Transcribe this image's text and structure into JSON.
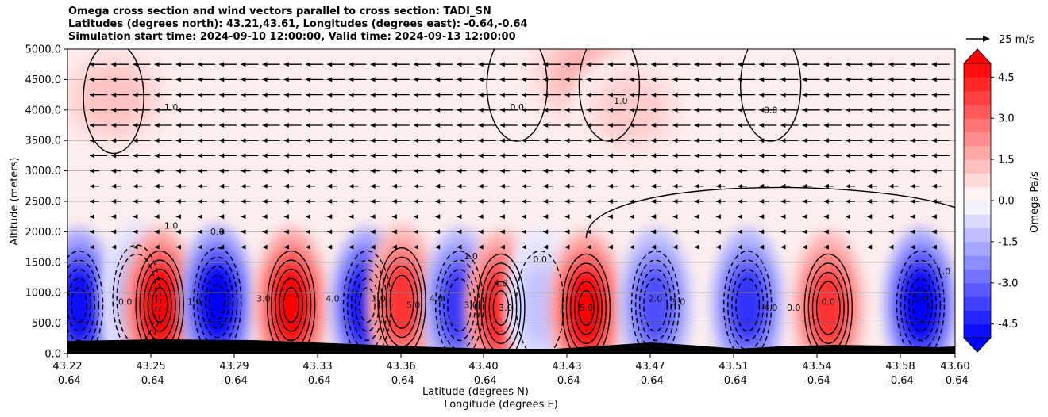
{
  "title": {
    "line1": "Omega cross section and wind vectors parallel to cross section: TADI_SN",
    "line2": "Latitudes (degrees north): 43.21,43.61, Longitudes (degrees east): -0.64,-0.64",
    "line3": "Simulation start time: 2024-09-10 12:00:00, Valid time: 2024-09-13 12:00:00"
  },
  "chart_data": {
    "type": "heatmap",
    "ylabel": "Altitude (meters)",
    "xlabel_lat": "Latitude (degrees N)",
    "xlabel_lon": "Longitude (degrees E)",
    "ylim": [
      0,
      5000
    ],
    "y_ticks": [
      "0.0",
      "500.0",
      "1000.0",
      "1500.0",
      "2000.0",
      "2500.0",
      "3000.0",
      "3500.0",
      "4000.0",
      "4500.0",
      "5000.0"
    ],
    "x_ticks_lat": [
      "43.22",
      "43.25",
      "43.29",
      "43.33",
      "43.36",
      "43.40",
      "43.43",
      "43.47",
      "43.51",
      "43.54",
      "43.58",
      "43.60"
    ],
    "x_ticks_lon": [
      "-0.64",
      "-0.64",
      "-0.64",
      "-0.64",
      "-0.64",
      "-0.64",
      "-0.64",
      "-0.64",
      "-0.64",
      "-0.64",
      "-0.64",
      "-0.64"
    ],
    "grid": "horizontal",
    "colorbar": {
      "label": "Omega Pa/s",
      "ticks": [
        "-4.5",
        "-3.0",
        "-1.5",
        "0.0",
        "1.5",
        "3.0",
        "4.5"
      ],
      "tick_values": [
        -4.5,
        -3.0,
        -1.5,
        0.0,
        1.5,
        3.0,
        4.5
      ],
      "range": [
        -5.0,
        5.0
      ],
      "extend": "both",
      "negative_color": "#0000ff",
      "positive_color": "#ff0000"
    },
    "quiver_key": "25 m/s",
    "contour_labels": [
      "1.0",
      "0.0",
      "1.0",
      "0.0",
      "1.0",
      "0.0",
      "1.0",
      "0.0",
      "0.0",
      "1.0",
      "3.0",
      "4.0",
      "3.0",
      "5.0",
      "4.0",
      "3.0",
      "4.0",
      "3.0",
      "5.0",
      "2.0",
      "3.0",
      "4.0",
      "0.0",
      "0.0",
      "1.0",
      "1.0"
    ],
    "cells": [
      {
        "lat": 43.22,
        "alt": 800,
        "omega": -4.8
      },
      {
        "lat": 43.245,
        "alt": 900,
        "omega": -1.5
      },
      {
        "lat": 43.255,
        "alt": 800,
        "omega": 5.0
      },
      {
        "lat": 43.28,
        "alt": 850,
        "omega": -5.0
      },
      {
        "lat": 43.312,
        "alt": 800,
        "omega": 5.0
      },
      {
        "lat": 43.345,
        "alt": 800,
        "omega": -5.0
      },
      {
        "lat": 43.36,
        "alt": 850,
        "omega": 4.0
      },
      {
        "lat": 43.385,
        "alt": 800,
        "omega": -4.0
      },
      {
        "lat": 43.403,
        "alt": 750,
        "omega": 4.5
      },
      {
        "lat": 43.42,
        "alt": 800,
        "omega": -1.2
      },
      {
        "lat": 43.44,
        "alt": 750,
        "omega": 5.0
      },
      {
        "lat": 43.47,
        "alt": 800,
        "omega": -3.5
      },
      {
        "lat": 43.51,
        "alt": 800,
        "omega": -4.0
      },
      {
        "lat": 43.545,
        "alt": 750,
        "omega": 4.0
      },
      {
        "lat": 43.585,
        "alt": 800,
        "omega": -5.0
      },
      {
        "lat": 43.235,
        "alt": 4200,
        "omega": 1.2
      },
      {
        "lat": 43.44,
        "alt": 4600,
        "omega": 1.5
      },
      {
        "lat": 43.46,
        "alt": 4000,
        "omega": 1.0
      }
    ]
  }
}
